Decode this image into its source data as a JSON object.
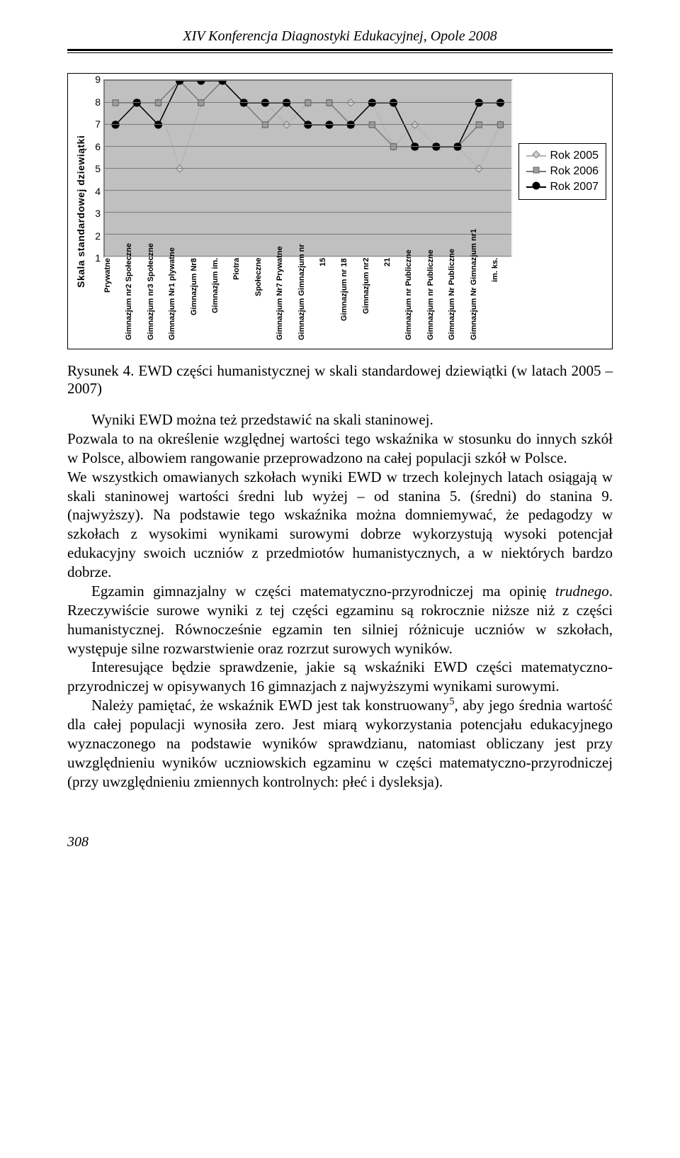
{
  "header": "XIV Konferencja Diagnostyki Edukacyjnej, Opole 2008",
  "chart": {
    "type": "line",
    "ylabel": "Skala standardowej dziewiątki",
    "ylim": [
      1,
      9
    ],
    "yticks": [
      1,
      2,
      3,
      4,
      5,
      6,
      7,
      8,
      9
    ],
    "background_color": "#c0c0c0",
    "grid_color": "#7a7a7a",
    "categories": [
      "Prywatne",
      "Gimnazjum nr2 Społeczne",
      "Gimnazjum nr3 Społeczne",
      "Gimnazjum Nr1 plywatne",
      "Gimnazjum Nr8",
      "Gimnazjum im.",
      "Piotra",
      "Społeczne",
      "Gimnazjum Nr7 Prywatne",
      "Gimnazjum Gimnazjum nr",
      "15",
      "Gimnazjum nr 18",
      "Gimnazjum nr2",
      "21",
      "Gimnazjum nr Publiczne",
      "Gimnazjum nr Publiczne",
      "Gimnazjum Nr Publiczne",
      "Gimnazjum Nr Gimnazjum nr1",
      "im. ks."
    ],
    "series": [
      {
        "name": "Rok 2005",
        "color": "#b5b5b5",
        "marker_fill": "#d0d0d0",
        "marker_stroke": "#808080",
        "marker_shape": "diamond",
        "values": [
          7,
          8,
          8,
          5,
          8,
          9,
          8,
          8,
          7,
          8,
          8,
          8,
          8,
          6,
          7,
          6,
          6,
          5,
          7
        ]
      },
      {
        "name": "Rok 2006",
        "color": "#7a7a7a",
        "marker_fill": "#a0a0a0",
        "marker_stroke": "#606060",
        "marker_shape": "square",
        "values": [
          8,
          8,
          8,
          9,
          8,
          9,
          8,
          7,
          8,
          8,
          8,
          7,
          7,
          6,
          6,
          6,
          6,
          7,
          7
        ]
      },
      {
        "name": "Rok 2007",
        "color": "#000000",
        "marker_fill": "#000000",
        "marker_stroke": "#000000",
        "marker_shape": "circle",
        "values": [
          7,
          8,
          7,
          9,
          9,
          9,
          8,
          8,
          8,
          7,
          7,
          7,
          8,
          8,
          6,
          6,
          6,
          8,
          8
        ]
      }
    ]
  },
  "caption_label": "Rysunek 4.",
  "caption_text": "EWD części humanistycznej w skali standardowej dziewiątki (w latach 2005 – 2007)",
  "paragraphs": [
    "Wyniki EWD można też przedstawić na skali staninowej.",
    "Pozwala to na określenie względnej wartości tego wskaźnika w stosunku do innych szkół w Polsce, albowiem rangowanie przeprowadzono na całej populacji szkół w Polsce.",
    "We wszystkich omawianych szkołach wyniki EWD w trzech kolejnych latach osiągają w skali staninowej wartości średni lub wyżej – od stanina 5. (średni) do stanina 9. (najwyższy). Na podstawie tego wskaźnika można domniemywać, że pedagodzy w szkołach z wysokimi wynikami surowymi dobrze wykorzystują wysoki potencjał edukacyjny swoich uczniów z przedmiotów humanistycznych, a w niektórych bardzo dobrze.",
    "Egzamin gimnazjalny w części matematyczno-przyrodniczej ma opinię <i>trudnego</i>. Rzeczywiście surowe wyniki z tej części egzaminu są rokrocznie niższe niż z części humanistycznej. Równocześnie egzamin ten silniej różnicuje uczniów w szkołach, występuje silne rozwarstwienie oraz rozrzut surowych wyników.",
    "Interesujące będzie sprawdzenie, jakie są wskaźniki EWD części matematyczno-przyrodniczej  w opisywanych 16 gimnazjach z najwyższymi  wynikami surowymi.",
    "Należy pamiętać, że wskaźnik EWD jest tak konstruowany<sup>5</sup>, aby jego średnia wartość dla całej populacji wynosiła zero. Jest miarą wykorzystania potencjału edukacyjnego wyznaczonego na podstawie wyników sprawdzianu, natomiast obliczany jest przy uwzględnieniu wyników uczniowskich egzaminu w części matematyczno-przyrodniczej (przy uwzględnieniu zmiennych kontrolnych: płeć i dysleksja)."
  ],
  "page_number": "308"
}
